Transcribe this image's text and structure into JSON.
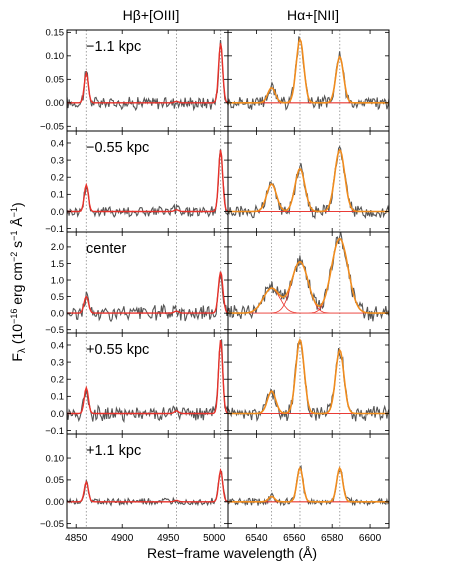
{
  "chart_data": {
    "type": "line",
    "x_label": "Rest−frame wavelength (Å)",
    "y_label": "Fλ (10⁻¹⁶ erg cm⁻² s⁻¹ Å⁻¹)",
    "y_label_parts": {
      "prefix": "F",
      "sub": "λ",
      "mid1": " (10",
      "exp1": "−16",
      "mid2": " erg cm",
      "exp2": "−2",
      "mid3": " s",
      "exp3": "−1",
      "mid4": " Å",
      "exp4": "−1",
      "suffix": ")"
    },
    "columns": [
      {
        "title": "Hβ+[OIII]",
        "xlim": [
          4840,
          5015
        ],
        "xticks": [
          4850,
          4900,
          4950,
          5000
        ],
        "line_markers": [
          4861,
          4959,
          5007
        ]
      },
      {
        "title": "Hα+[NII]",
        "xlim": [
          6525,
          6610
        ],
        "xticks": [
          6540,
          6560,
          6580,
          6600
        ],
        "line_markers": [
          6548,
          6563,
          6584
        ]
      }
    ],
    "panels": [
      {
        "label": "−1.1 kpc",
        "ylim": [
          -0.06,
          0.155
        ],
        "yticks": [
          "0.15",
          "0.10",
          "0.05",
          "0.00",
          "−0.05"
        ],
        "ytick_values": [
          0.15,
          0.1,
          0.05,
          0.0,
          -0.05
        ],
        "hb": {
          "amps": [
            0.063,
            0.003,
            0.127
          ],
          "sigma": 2.2
        },
        "ha": {
          "amps": [
            0.032,
            0.135,
            0.098
          ],
          "sigma": 2.0
        }
      },
      {
        "label": "−0.55 kpc",
        "ylim": [
          -0.12,
          0.47
        ],
        "yticks": [
          "0.4",
          "0.3",
          "0.2",
          "0.1",
          "0.0",
          "−0.1"
        ],
        "ytick_values": [
          0.4,
          0.3,
          0.2,
          0.1,
          0.0,
          -0.1
        ],
        "hb": {
          "amps": [
            0.155,
            0.01,
            0.36
          ],
          "sigma": 2.2
        },
        "ha": {
          "amps": [
            0.16,
            0.25,
            0.36
          ],
          "sigma": 2.6
        }
      },
      {
        "label": "center",
        "ylim": [
          -0.6,
          2.45
        ],
        "yticks": [
          "2.0",
          "1.5",
          "1.0",
          "0.5",
          "0.0",
          "−0.5"
        ],
        "ytick_values": [
          2.0,
          1.5,
          1.0,
          0.5,
          0.0,
          -0.5
        ],
        "hb": {
          "amps": [
            0.5,
            0.06,
            1.25
          ],
          "sigma": 2.4
        },
        "ha": {
          "amps": [
            0.75,
            1.55,
            2.25
          ],
          "sigma": 4.4
        }
      },
      {
        "label": "+0.55 kpc",
        "ylim": [
          -0.12,
          0.47
        ],
        "yticks": [
          "0.4",
          "0.3",
          "0.2",
          "0.1",
          "0.0",
          "−0.1"
        ],
        "ytick_values": [
          0.4,
          0.3,
          0.2,
          0.1,
          0.0,
          -0.1
        ],
        "hb": {
          "amps": [
            0.15,
            0.015,
            0.43
          ],
          "sigma": 2.2
        },
        "ha": {
          "amps": [
            0.13,
            0.43,
            0.37
          ],
          "sigma": 2.2
        }
      },
      {
        "label": "+1.1 kpc",
        "ylim": [
          -0.06,
          0.155
        ],
        "yticks": [
          "0.10",
          "0.05",
          "0.00",
          "−0.05"
        ],
        "ytick_values": [
          0.1,
          0.05,
          0.0,
          -0.05
        ],
        "hb": {
          "amps": [
            0.045,
            0.003,
            0.072
          ],
          "sigma": 2.2
        },
        "ha": {
          "amps": [
            0.012,
            0.077,
            0.077
          ],
          "sigma": 1.6
        }
      }
    ]
  },
  "colors": {
    "data": "#555555",
    "total_fit": "#f08c1e",
    "component_fit": "#e8312a",
    "zero_line": "#e8312a",
    "marker": "#9a9a9a"
  }
}
